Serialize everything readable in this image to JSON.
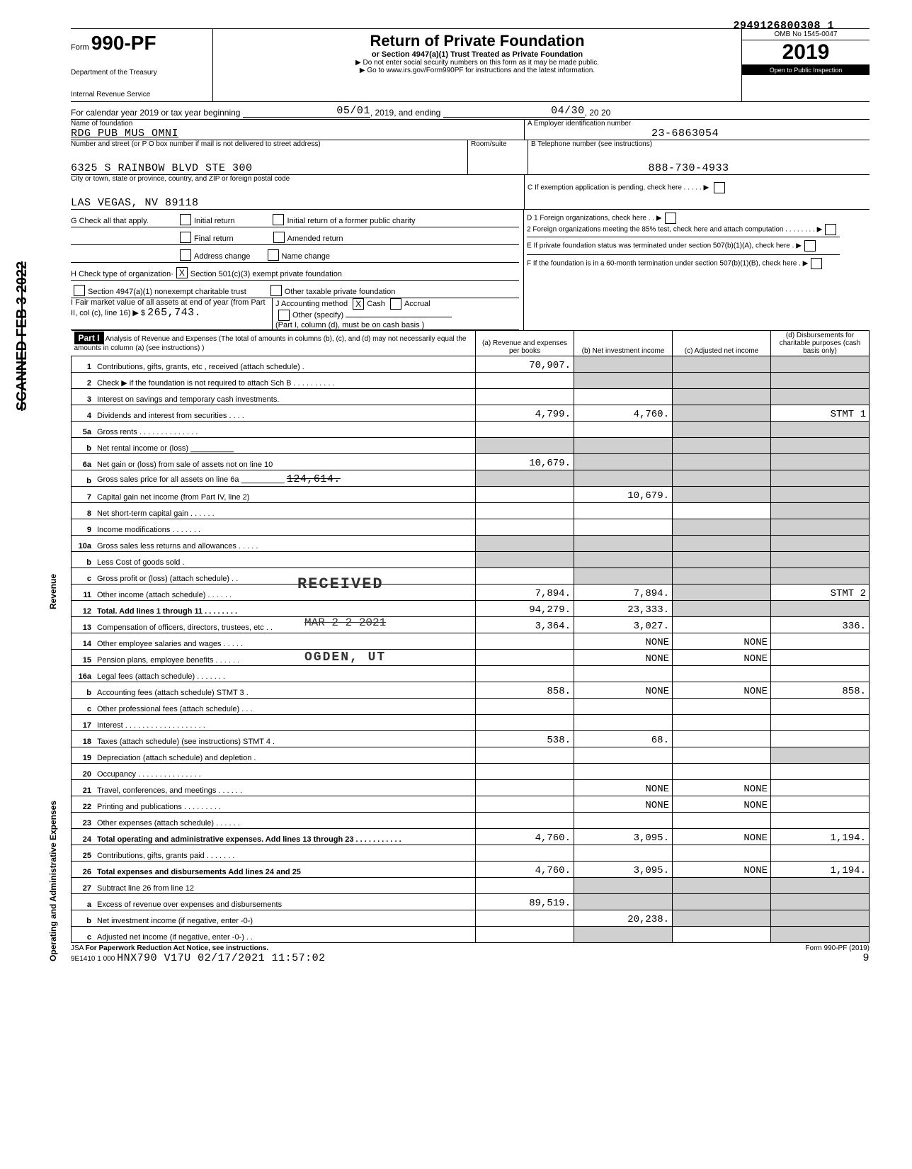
{
  "doc_number": "2949126800308 1",
  "scanned_stamp": "SCANNED FEB 3 2022",
  "form": {
    "form_label": "Form",
    "form_number": "990-PF",
    "dept1": "Department of the Treasury",
    "dept2": "Internal Revenue Service",
    "title": "Return of Private Foundation",
    "subtitle": "or Section 4947(a)(1) Trust Treated as Private Foundation",
    "note1": "▶ Do not enter social security numbers on this form as it may be made public.",
    "note2": "▶ Go to www.irs.gov/Form990PF for instructions and the latest information.",
    "omb": "OMB No 1545-0047",
    "year": "2019",
    "open": "Open to Public Inspection"
  },
  "period": {
    "label": "For calendar year 2019 or tax year beginning",
    "begin": "05/01",
    "mid": ", 2019, and ending",
    "end": "04/30",
    "end_year": ", 20 20"
  },
  "id": {
    "name_label": "Name of foundation",
    "name": "RDG PUB MUS OMNI",
    "addr_label": "Number and street (or P O box number if mail is not delivered to street address)",
    "room_label": "Room/suite",
    "addr": "6325 S RAINBOW BLVD STE 300",
    "city_label": "City or town, state or province, country, and ZIP or foreign postal code",
    "city": "LAS VEGAS, NV 89118",
    "a_label": "A  Employer identification number",
    "a_val": "23-6863054",
    "b_label": "B  Telephone number (see instructions)",
    "b_val": "888-730-4933",
    "c_label": "C  If exemption application is pending, check here . . . . . ▶"
  },
  "checks": {
    "g_label": "G Check all that apply.",
    "g_initial": "Initial return",
    "g_initial_former": "Initial return of a former public charity",
    "g_final": "Final return",
    "g_amended": "Amended return",
    "g_addr": "Address change",
    "g_name": "Name change",
    "h_label": "H Check type of organization·",
    "h_501": "Section 501(c)(3) exempt private foundation",
    "h_4947": "Section 4947(a)(1) nonexempt charitable trust",
    "h_other": "Other taxable private foundation",
    "i_label": "I  Fair market value of all assets at end of year (from Part II, col (c), line 16) ▶ $",
    "i_val": "265,743.",
    "j_label": "J Accounting method",
    "j_cash": "Cash",
    "j_accrual": "Accrual",
    "j_other": "Other (specify)",
    "j_note": "(Part I, column (d), must be on cash basis )",
    "d1": "D 1 Foreign organizations, check here . . ▶",
    "d2": "2 Foreign organizations meeting the 85% test, check here and attach computation . . . . . . . . ▶",
    "e": "E  If private foundation status was terminated under section 507(b)(1)(A), check here . ▶",
    "f": "F  If the foundation is in a 60-month termination under section 507(b)(1)(B), check here . ▶"
  },
  "part1": {
    "hdr": "Part I",
    "title": "Analysis of Revenue and Expenses (The total of amounts in columns (b), (c), and (d) may not necessarily equal the amounts in column (a) (see instructions) )",
    "col_a": "(a) Revenue and expenses per books",
    "col_b": "(b) Net investment income",
    "col_c": "(c) Adjusted net income",
    "col_d": "(d) Disbursements for charitable purposes (cash basis only)"
  },
  "stamps": {
    "received": "RECEIVED",
    "date": "MAR 2 2 2021",
    "ogden": "OGDEN, UT"
  },
  "lines": {
    "l1": {
      "n": "1",
      "d": "Contributions, gifts, grants, etc , received (attach schedule) .",
      "a": "70,907."
    },
    "l2": {
      "n": "2",
      "d": "Check ▶         if the foundation is not required to attach Sch B . . . . . . . . . ."
    },
    "l3": {
      "n": "3",
      "d": "Interest on savings and temporary cash investments."
    },
    "l4": {
      "n": "4",
      "d": "Dividends and interest from securities . . . .",
      "a": "4,799.",
      "b": "4,760.",
      "dd": "STMT 1"
    },
    "l5a": {
      "n": "5a",
      "d": "Gross rents . . . . . . . . . . . . . ."
    },
    "l5b": {
      "n": "b",
      "d": "Net rental income or (loss) __________"
    },
    "l6a": {
      "n": "6a",
      "d": "Net gain or (loss) from sale of assets not on line 10",
      "a": "10,679."
    },
    "l6b": {
      "n": "b",
      "d": "Gross sales price for all assets on line 6a __________",
      "v": "124,614."
    },
    "l7": {
      "n": "7",
      "d": "Capital gain net income (from Part IV, line 2)",
      "b": "10,679."
    },
    "l8": {
      "n": "8",
      "d": "Net short-term capital gain . . . . . ."
    },
    "l9": {
      "n": "9",
      "d": "Income modifications . . . . . . ."
    },
    "l10a": {
      "n": "10a",
      "d": "Gross sales less returns and allowances . . . . ."
    },
    "l10b": {
      "n": "b",
      "d": "Less Cost of goods sold ."
    },
    "l10c": {
      "n": "c",
      "d": "Gross profit or (loss) (attach schedule) . ."
    },
    "l11": {
      "n": "11",
      "d": "Other income (attach schedule) . . . . . .",
      "a": "7,894.",
      "b": "7,894.",
      "dd": "STMT 2"
    },
    "l12": {
      "n": "12",
      "d": "Total. Add lines 1 through 11 . . . . . . . .",
      "a": "94,279.",
      "b": "23,333."
    },
    "l13": {
      "n": "13",
      "d": "Compensation of officers, directors, trustees, etc . .",
      "a": "3,364.",
      "b": "3,027.",
      "dd": "336."
    },
    "l14": {
      "n": "14",
      "d": "Other employee salaries and wages . . . . .",
      "b": "NONE",
      "c": "NONE"
    },
    "l15": {
      "n": "15",
      "d": "Pension plans, employee benefits . . . . . .",
      "b": "NONE",
      "c": "NONE"
    },
    "l16a": {
      "n": "16a",
      "d": "Legal fees (attach schedule) . . . . . . ."
    },
    "l16b": {
      "n": "b",
      "d": "Accounting fees (attach schedule) STMT 3 .",
      "a": "858.",
      "b": "NONE",
      "c": "NONE",
      "dd": "858."
    },
    "l16c": {
      "n": "c",
      "d": "Other professional fees (attach schedule) . . ."
    },
    "l17": {
      "n": "17",
      "d": "Interest . . . . . . . . . . . . . . . . . . ."
    },
    "l18": {
      "n": "18",
      "d": "Taxes (attach schedule) (see instructions) STMT 4 .",
      "a": "538.",
      "b": "68."
    },
    "l19": {
      "n": "19",
      "d": "Depreciation (attach schedule) and depletion ."
    },
    "l20": {
      "n": "20",
      "d": "Occupancy . . . . . . . . . . . . . . ."
    },
    "l21": {
      "n": "21",
      "d": "Travel, conferences, and meetings . . . . . .",
      "b": "NONE",
      "c": "NONE"
    },
    "l22": {
      "n": "22",
      "d": "Printing and publications . . . . . . . . .",
      "b": "NONE",
      "c": "NONE"
    },
    "l23": {
      "n": "23",
      "d": "Other expenses (attach schedule) . . . . . ."
    },
    "l24": {
      "n": "24",
      "d": "Total operating and administrative expenses. Add lines 13 through 23 . . . . . . . . . . .",
      "a": "4,760.",
      "b": "3,095.",
      "c": "NONE",
      "dd": "1,194."
    },
    "l25": {
      "n": "25",
      "d": "Contributions, gifts, grants paid . . . . . . ."
    },
    "l26": {
      "n": "26",
      "d": "Total expenses and disbursements Add lines 24 and 25",
      "a": "4,760.",
      "b": "3,095.",
      "c": "NONE",
      "dd": "1,194."
    },
    "l27": {
      "n": "27",
      "d": "Subtract line 26 from line 12"
    },
    "l27a": {
      "n": "a",
      "d": "Excess of revenue over expenses and disbursements",
      "a": "89,519."
    },
    "l27b": {
      "n": "b",
      "d": "Net investment income (if negative, enter -0-)",
      "b": "20,238."
    },
    "l27c": {
      "n": "c",
      "d": "Adjusted net income (if negative, enter -0-) . ."
    }
  },
  "footer": {
    "jsa": "JSA",
    "pra": "For Paperwork Reduction Act Notice, see instructions.",
    "code": "9E1410 1 000",
    "stamp": "HNX790 V17U 02/17/2021 11:57:02",
    "form": "Form 990-PF (2019)",
    "page": "9"
  },
  "side": {
    "revenue": "Revenue",
    "expenses": "Operating and Administrative Expenses"
  }
}
